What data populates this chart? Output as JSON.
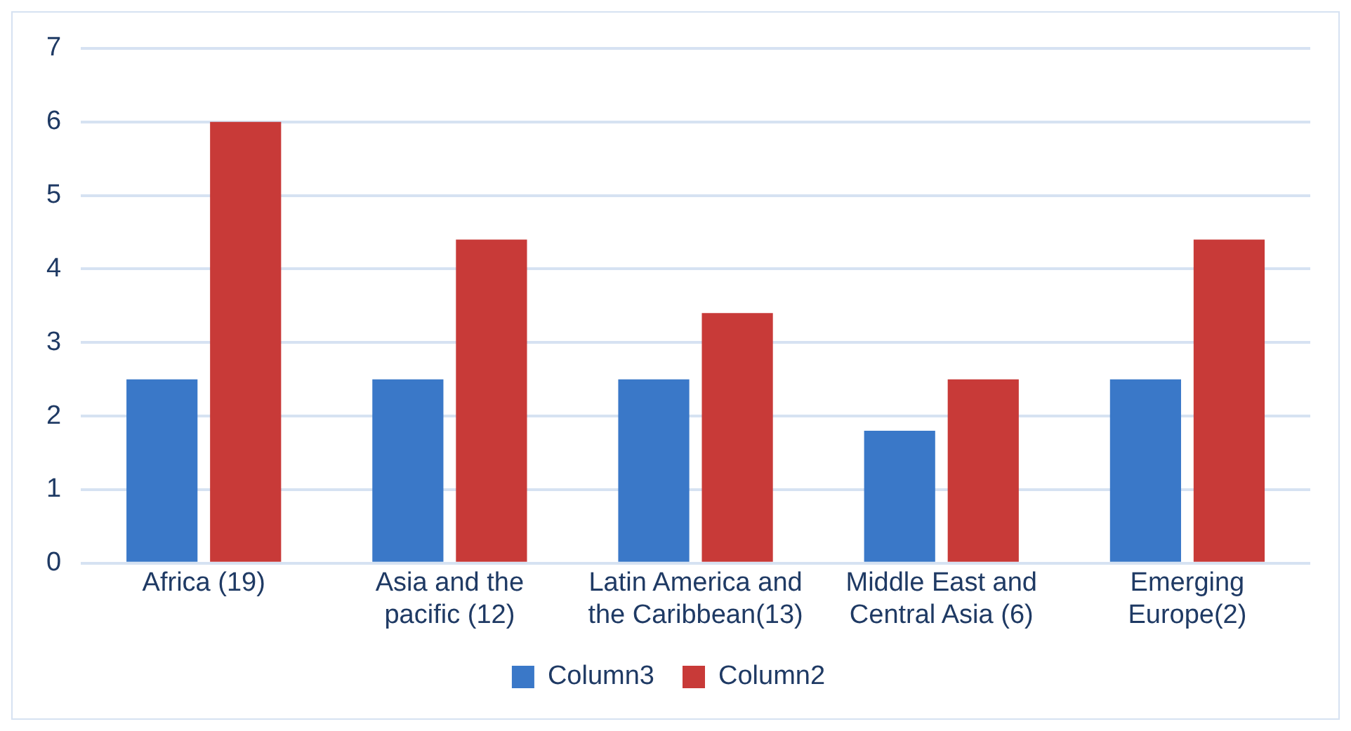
{
  "chart_data": {
    "type": "bar",
    "categories": [
      "Africa (19)",
      "Asia and the pacific (12)",
      "Latin America and the Caribbean(13)",
      "Middle East and Central Asia (6)",
      "Emerging Europe(2)"
    ],
    "series": [
      {
        "name": "Column3",
        "color": "#3a78c8",
        "values": [
          2.5,
          2.5,
          2.5,
          1.8,
          2.5
        ]
      },
      {
        "name": "Column2",
        "color": "#c83a38",
        "values": [
          6.0,
          4.4,
          3.4,
          2.5,
          4.4
        ]
      }
    ],
    "ylim": [
      0,
      7
    ],
    "yticks": [
      0,
      1,
      2,
      3,
      4,
      5,
      6,
      7
    ],
    "grid": "y",
    "legend": "bottom"
  }
}
